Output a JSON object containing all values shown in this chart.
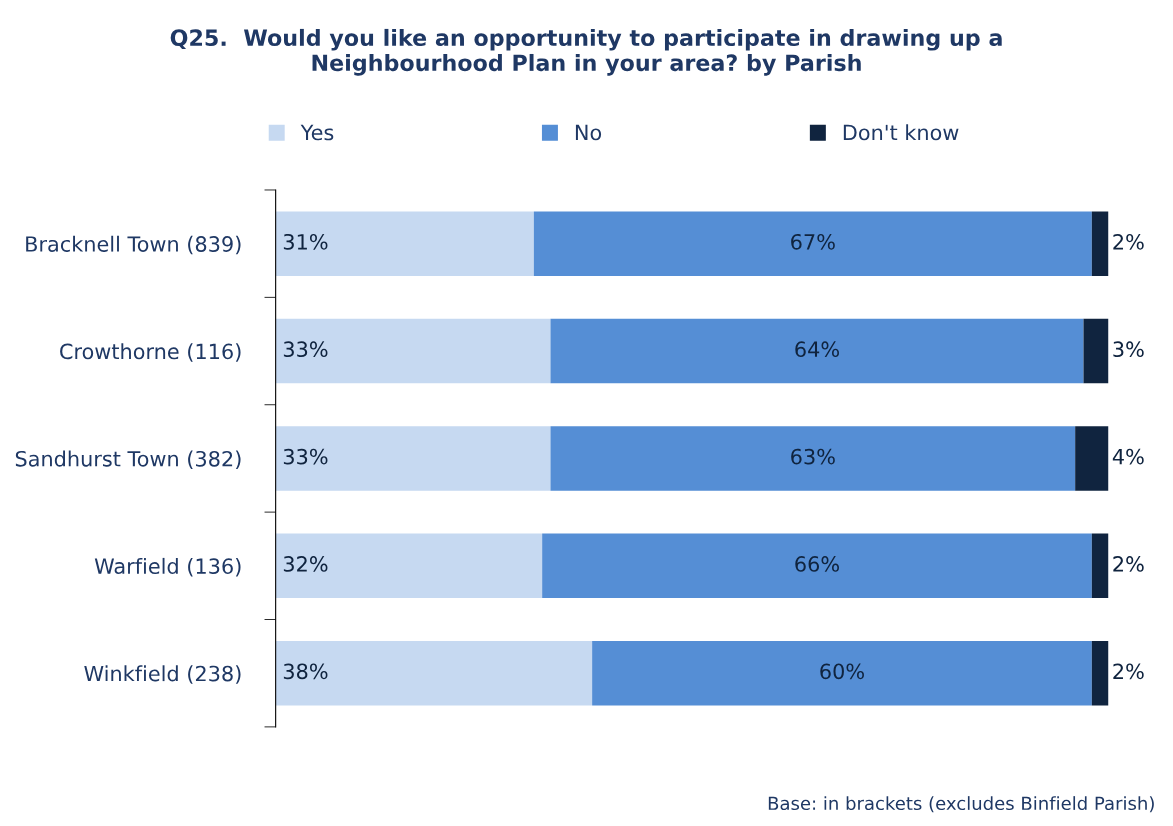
{
  "chart_data": {
    "type": "bar",
    "orientation": "horizontal",
    "stacked": true,
    "title": "Q25.  Would you like an opportunity to participate in drawing up a\nNeighbourhood Plan in your area? by Parish",
    "categories": [
      "Bracknell Town (839)",
      "Crowthorne (116)",
      "Sandhurst Town (382)",
      "Warfield (136)",
      "Winkfield (238)"
    ],
    "series": [
      {
        "name": "Yes",
        "color": "#c6d9f1",
        "values": [
          31,
          33,
          33,
          32,
          38
        ],
        "value_labels": [
          "31%",
          "33%",
          "33%",
          "32%",
          "38%"
        ]
      },
      {
        "name": "No",
        "color": "#558ed5",
        "values": [
          67,
          64,
          63,
          66,
          60
        ],
        "value_labels": [
          "67%",
          "64%",
          "63%",
          "66%",
          "60%"
        ]
      },
      {
        "name": "Don't know",
        "color": "#10243f",
        "values": [
          2,
          3,
          4,
          2,
          2
        ],
        "value_labels": [
          "2%",
          "3%",
          "4%",
          "2%",
          "2%"
        ]
      }
    ],
    "xlim": [
      0,
      100
    ],
    "tick_labels": "y",
    "grid": false,
    "legend": "top",
    "annotations": [
      "Base: in brackets (excludes Binfield Parish)"
    ]
  }
}
